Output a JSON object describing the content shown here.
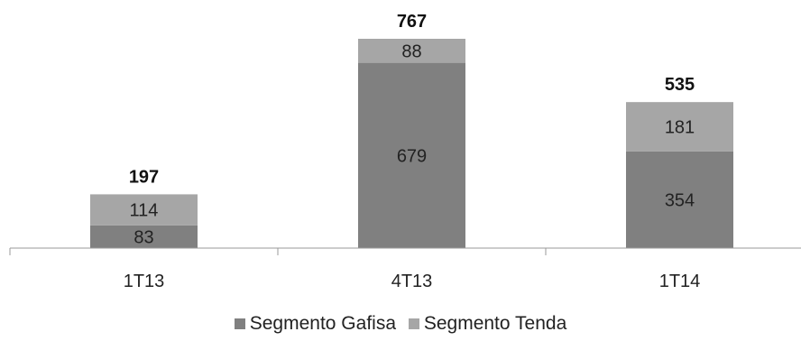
{
  "chart_data": {
    "type": "bar",
    "stacked": true,
    "categories": [
      "1T13",
      "4T13",
      "1T14"
    ],
    "series": [
      {
        "name": "Segmento Gafisa",
        "values": [
          83,
          679,
          354
        ],
        "color": "#808080"
      },
      {
        "name": "Segmento Tenda",
        "values": [
          114,
          88,
          181
        ],
        "color": "#a6a6a6"
      }
    ],
    "totals": [
      "197",
      "767",
      "535"
    ],
    "title": "",
    "xlabel": "",
    "ylabel": "",
    "ylim": [
      0,
      767
    ],
    "grid": false,
    "legend_position": "bottom"
  }
}
